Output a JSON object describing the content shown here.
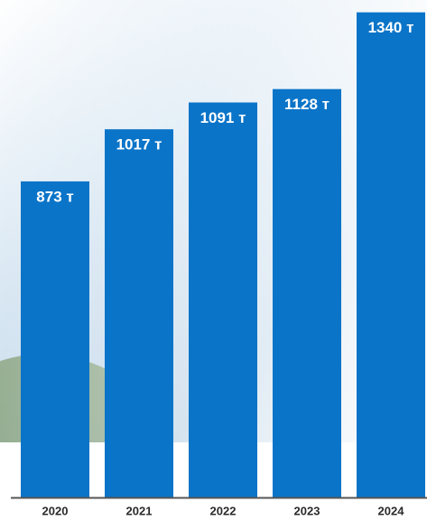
{
  "chart_data": {
    "type": "bar",
    "categories": [
      "2020",
      "2021",
      "2022",
      "2023",
      "2024"
    ],
    "values": [
      873,
      1017,
      1091,
      1128,
      1340
    ],
    "value_labels": [
      "873 т",
      "1017 т",
      "1091 т",
      "1128 т",
      "1340 т"
    ],
    "color": "#0a74c8"
  }
}
